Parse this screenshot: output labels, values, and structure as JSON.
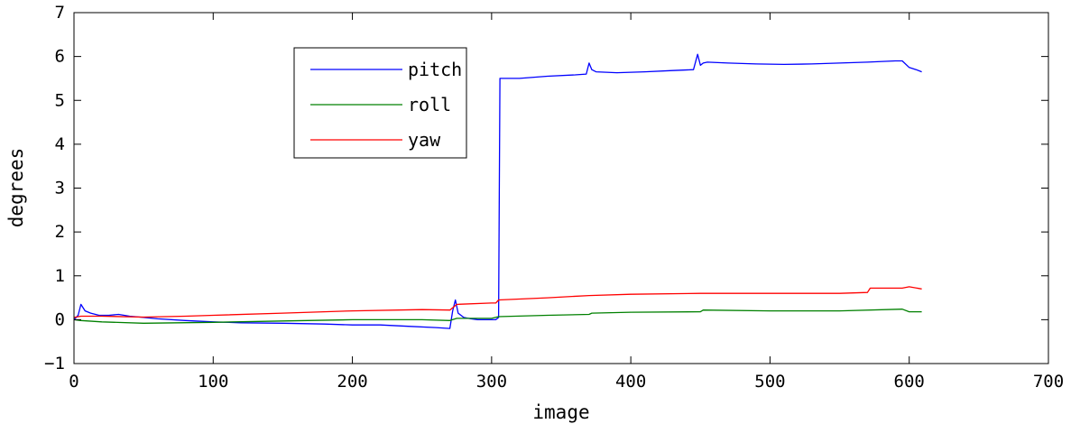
{
  "chart_data": {
    "type": "line",
    "title": "",
    "xlabel": "image",
    "ylabel": "degrees",
    "xlim": [
      0,
      700
    ],
    "ylim": [
      -1,
      7
    ],
    "xticks": [
      "0",
      "100",
      "200",
      "300",
      "400",
      "500",
      "600",
      "700"
    ],
    "yticks": [
      "−1",
      "0",
      "1",
      "2",
      "3",
      "4",
      "5",
      "6",
      "7"
    ],
    "grid": false,
    "legend_position": "top-center",
    "series": [
      {
        "name": "pitch",
        "color": "#0000ff",
        "x": [
          0,
          3,
          5,
          8,
          12,
          18,
          25,
          32,
          40,
          50,
          60,
          80,
          100,
          120,
          150,
          180,
          200,
          220,
          240,
          260,
          270,
          272,
          274,
          276,
          280,
          285,
          290,
          295,
          300,
          303,
          305,
          306,
          310,
          320,
          340,
          360,
          368,
          370,
          372,
          375,
          390,
          410,
          430,
          445,
          448,
          450,
          452,
          455,
          470,
          490,
          510,
          530,
          550,
          570,
          590,
          595,
          600,
          605,
          609
        ],
        "y": [
          0.0,
          0.1,
          0.35,
          0.2,
          0.15,
          0.1,
          0.1,
          0.12,
          0.08,
          0.05,
          0.02,
          -0.02,
          -0.05,
          -0.07,
          -0.08,
          -0.1,
          -0.12,
          -0.12,
          -0.15,
          -0.18,
          -0.2,
          0.2,
          0.45,
          0.15,
          0.05,
          0.02,
          0.0,
          0.0,
          0.0,
          0.0,
          0.05,
          5.5,
          5.5,
          5.5,
          5.55,
          5.58,
          5.6,
          5.85,
          5.7,
          5.65,
          5.63,
          5.65,
          5.68,
          5.7,
          6.05,
          5.8,
          5.85,
          5.87,
          5.85,
          5.83,
          5.82,
          5.83,
          5.85,
          5.87,
          5.9,
          5.9,
          5.75,
          5.7,
          5.65
        ]
      },
      {
        "name": "roll",
        "color": "#008000",
        "x": [
          0,
          5,
          20,
          50,
          100,
          150,
          200,
          250,
          270,
          275,
          300,
          305,
          340,
          370,
          372,
          400,
          450,
          452,
          500,
          550,
          595,
          600,
          609
        ],
        "y": [
          0.0,
          -0.02,
          -0.05,
          -0.08,
          -0.06,
          -0.03,
          0.0,
          0.0,
          -0.02,
          0.03,
          0.03,
          0.07,
          0.1,
          0.12,
          0.15,
          0.17,
          0.18,
          0.22,
          0.2,
          0.2,
          0.24,
          0.18,
          0.18
        ]
      },
      {
        "name": "yaw",
        "color": "#ff0000",
        "x": [
          0,
          5,
          20,
          50,
          80,
          100,
          150,
          200,
          250,
          270,
          275,
          300,
          303,
          305,
          340,
          370,
          400,
          450,
          500,
          550,
          570,
          572,
          590,
          595,
          600,
          609
        ],
        "y": [
          0.05,
          0.08,
          0.08,
          0.06,
          0.08,
          0.1,
          0.15,
          0.2,
          0.23,
          0.22,
          0.35,
          0.38,
          0.38,
          0.45,
          0.5,
          0.55,
          0.58,
          0.6,
          0.6,
          0.6,
          0.62,
          0.72,
          0.72,
          0.72,
          0.75,
          0.7
        ]
      }
    ]
  }
}
